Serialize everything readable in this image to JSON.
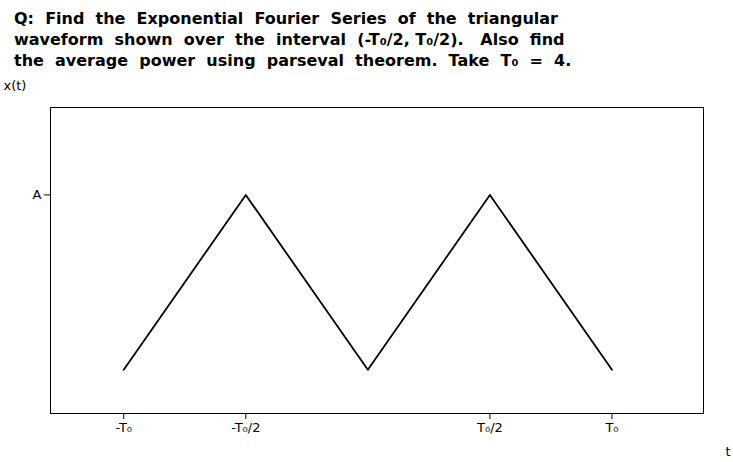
{
  "chart_data": {
    "type": "line",
    "title": "Q:  Find  the  Exponential  Fourier  Series  of  the  triangular\nwaveform  shown  over  the  interval  (-T₀/2, T₀/2).   Also  find\nthe  average  power  using  parseval  theorem.  Take  T₀  =  4.",
    "xlabel": "t",
    "ylabel": "x(t)",
    "x": [
      -4,
      -2,
      0,
      2,
      4
    ],
    "values": [
      0,
      1,
      0,
      1,
      0
    ],
    "color": "#000000",
    "xlim": [
      -5.2,
      5.5
    ],
    "xticks": [
      {
        "value": -4,
        "label": "-T₀"
      },
      {
        "value": -2,
        "label": "-T₀/2"
      },
      {
        "value": 2,
        "label": "T₀/2"
      },
      {
        "value": 4,
        "label": "T₀"
      }
    ],
    "ylim": [
      -0.25,
      1.5
    ],
    "yticks": [
      {
        "value": 1,
        "label": "A"
      }
    ],
    "grid": false
  }
}
